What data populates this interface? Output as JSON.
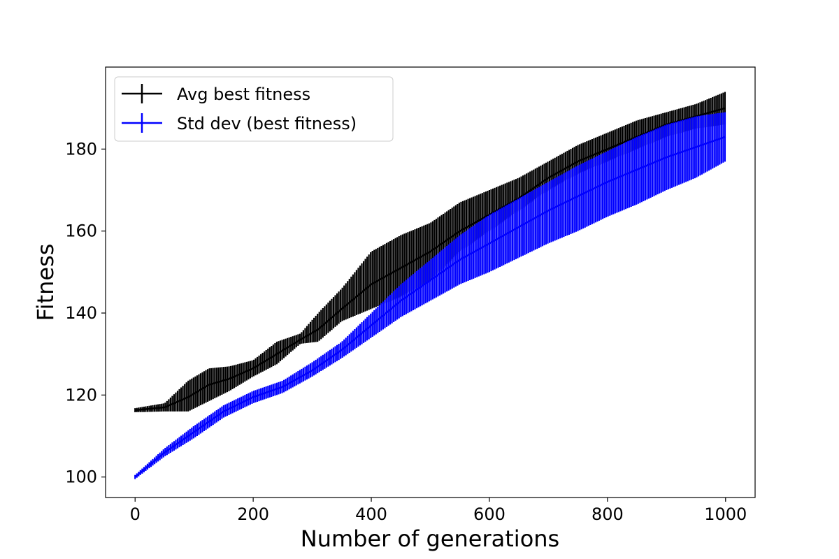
{
  "chart_data": {
    "type": "line",
    "title": "",
    "xlabel": "Number of generations",
    "ylabel": "Fitness",
    "xlim": [
      -50,
      1050
    ],
    "ylim": [
      95,
      200
    ],
    "xticks": [
      0,
      200,
      400,
      600,
      800,
      1000
    ],
    "yticks": [
      100,
      120,
      140,
      160,
      180
    ],
    "grid": false,
    "legend_position": "top-left",
    "series": [
      {
        "name": "Avg best fitness",
        "color": "#000000",
        "style": "errorbar",
        "points": [
          {
            "x": 0,
            "mean": 116.3,
            "lo": 115.8,
            "hi": 116.8
          },
          {
            "x": 50,
            "mean": 117.0,
            "lo": 116.0,
            "hi": 118.0
          },
          {
            "x": 90,
            "mean": 119.5,
            "lo": 116.0,
            "hi": 123.5
          },
          {
            "x": 125,
            "mean": 122.5,
            "lo": 118.5,
            "hi": 126.5
          },
          {
            "x": 160,
            "mean": 124.0,
            "lo": 121.0,
            "hi": 127.0
          },
          {
            "x": 200,
            "mean": 126.5,
            "lo": 124.5,
            "hi": 128.5
          },
          {
            "x": 240,
            "mean": 130.0,
            "lo": 127.5,
            "hi": 133.0
          },
          {
            "x": 280,
            "mean": 133.5,
            "lo": 132.5,
            "hi": 135.0
          },
          {
            "x": 310,
            "mean": 136.0,
            "lo": 133.0,
            "hi": 140.0
          },
          {
            "x": 350,
            "mean": 141.0,
            "lo": 138.0,
            "hi": 146.0
          },
          {
            "x": 400,
            "mean": 147.0,
            "lo": 141.0,
            "hi": 155.0
          },
          {
            "x": 450,
            "mean": 151.0,
            "lo": 144.0,
            "hi": 159.0
          },
          {
            "x": 500,
            "mean": 155.0,
            "lo": 148.0,
            "hi": 162.0
          },
          {
            "x": 550,
            "mean": 160.0,
            "lo": 155.0,
            "hi": 167.0
          },
          {
            "x": 600,
            "mean": 164.0,
            "lo": 160.0,
            "hi": 170.0
          },
          {
            "x": 650,
            "mean": 168.0,
            "lo": 165.0,
            "hi": 173.0
          },
          {
            "x": 700,
            "mean": 173.0,
            "lo": 170.0,
            "hi": 177.0
          },
          {
            "x": 750,
            "mean": 177.0,
            "lo": 174.0,
            "hi": 181.0
          },
          {
            "x": 800,
            "mean": 180.0,
            "lo": 177.0,
            "hi": 184.0
          },
          {
            "x": 850,
            "mean": 183.0,
            "lo": 180.0,
            "hi": 187.0
          },
          {
            "x": 900,
            "mean": 186.0,
            "lo": 183.0,
            "hi": 189.0
          },
          {
            "x": 950,
            "mean": 188.0,
            "lo": 185.0,
            "hi": 191.0
          },
          {
            "x": 1000,
            "mean": 190.0,
            "lo": 186.0,
            "hi": 194.0
          }
        ]
      },
      {
        "name": "Std dev (best fitness)",
        "color": "#0000ff",
        "style": "errorbar",
        "points": [
          {
            "x": 0,
            "mean": 100.0,
            "lo": 99.5,
            "hi": 100.5
          },
          {
            "x": 50,
            "mean": 106.0,
            "lo": 105.0,
            "hi": 107.0
          },
          {
            "x": 100,
            "mean": 111.0,
            "lo": 109.5,
            "hi": 112.5
          },
          {
            "x": 150,
            "mean": 116.0,
            "lo": 114.5,
            "hi": 117.5
          },
          {
            "x": 200,
            "mean": 119.5,
            "lo": 118.0,
            "hi": 121.0
          },
          {
            "x": 250,
            "mean": 122.0,
            "lo": 120.5,
            "hi": 123.5
          },
          {
            "x": 300,
            "mean": 126.0,
            "lo": 124.5,
            "hi": 128.0
          },
          {
            "x": 350,
            "mean": 131.0,
            "lo": 129.0,
            "hi": 133.0
          },
          {
            "x": 400,
            "mean": 137.0,
            "lo": 134.0,
            "hi": 140.0
          },
          {
            "x": 450,
            "mean": 143.0,
            "lo": 139.0,
            "hi": 147.0
          },
          {
            "x": 500,
            "mean": 148.0,
            "lo": 143.0,
            "hi": 153.0
          },
          {
            "x": 550,
            "mean": 153.0,
            "lo": 147.0,
            "hi": 159.0
          },
          {
            "x": 600,
            "mean": 157.0,
            "lo": 150.0,
            "hi": 164.0
          },
          {
            "x": 650,
            "mean": 161.0,
            "lo": 153.5,
            "hi": 168.0
          },
          {
            "x": 700,
            "mean": 165.0,
            "lo": 157.0,
            "hi": 172.0
          },
          {
            "x": 750,
            "mean": 168.5,
            "lo": 160.0,
            "hi": 176.0
          },
          {
            "x": 800,
            "mean": 172.0,
            "lo": 163.5,
            "hi": 179.5
          },
          {
            "x": 850,
            "mean": 175.0,
            "lo": 166.5,
            "hi": 183.0
          },
          {
            "x": 900,
            "mean": 178.0,
            "lo": 170.0,
            "hi": 186.0
          },
          {
            "x": 950,
            "mean": 180.5,
            "lo": 173.0,
            "hi": 188.0
          },
          {
            "x": 1000,
            "mean": 183.0,
            "lo": 177.0,
            "hi": 189.0
          }
        ]
      }
    ]
  }
}
